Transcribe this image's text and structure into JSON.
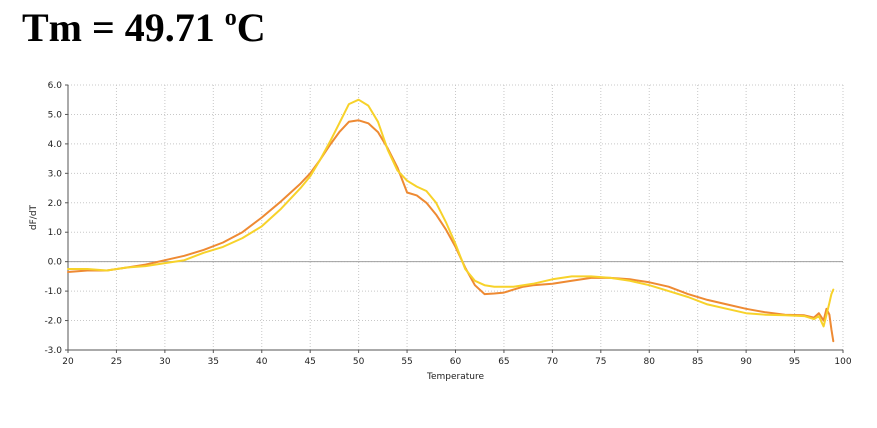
{
  "title": {
    "prefix": "Tm = 49.71 ",
    "degree": "o",
    "unit": "C"
  },
  "chart_data": {
    "type": "line",
    "xlabel": "Temperature",
    "ylabel": "dF/dT",
    "xlim": [
      20,
      100
    ],
    "ylim": [
      -3.0,
      6.0
    ],
    "xticks": [
      20,
      25,
      30,
      35,
      40,
      45,
      50,
      55,
      60,
      65,
      70,
      75,
      80,
      85,
      90,
      95,
      100
    ],
    "xtick_labels": [
      "20",
      "25",
      "30",
      "35",
      "40",
      "45",
      "50",
      "55",
      "60",
      "65",
      "70",
      "75",
      "80",
      "85",
      "90",
      "95",
      "100"
    ],
    "yticks": [
      -3,
      -2,
      -1,
      0,
      1,
      2,
      3,
      4,
      5,
      6
    ],
    "ytick_labels": [
      "-3.0",
      "-2.0",
      "-1.0",
      "0.0",
      "1.0",
      "2.0",
      "3.0",
      "4.0",
      "5.0",
      "6.0"
    ],
    "grid": true,
    "legend": "none",
    "series": [
      {
        "color": "#ee8a33",
        "x": [
          20,
          22,
          24,
          26,
          28,
          30,
          32,
          34,
          36,
          38,
          40,
          42,
          44,
          45,
          46,
          47,
          48,
          49,
          50,
          51,
          52,
          53,
          54,
          55,
          56,
          57,
          58,
          59,
          60,
          61,
          62,
          63,
          64,
          65,
          66,
          67,
          68,
          70,
          72,
          74,
          76,
          78,
          80,
          82,
          84,
          86,
          88,
          90,
          92,
          94,
          96,
          97,
          97.5,
          98,
          98.3,
          98.6,
          98.8,
          99
        ],
        "y": [
          -0.35,
          -0.3,
          -0.3,
          -0.2,
          -0.1,
          0.05,
          0.2,
          0.4,
          0.65,
          1.0,
          1.5,
          2.05,
          2.65,
          3.0,
          3.45,
          3.95,
          4.4,
          4.75,
          4.8,
          4.7,
          4.4,
          3.85,
          3.2,
          2.35,
          2.25,
          2.0,
          1.6,
          1.1,
          0.5,
          -0.2,
          -0.8,
          -1.1,
          -1.08,
          -1.05,
          -0.95,
          -0.85,
          -0.8,
          -0.75,
          -0.65,
          -0.55,
          -0.55,
          -0.6,
          -0.7,
          -0.85,
          -1.1,
          -1.3,
          -1.45,
          -1.6,
          -1.72,
          -1.8,
          -1.82,
          -1.9,
          -1.75,
          -2.0,
          -1.6,
          -1.8,
          -2.3,
          -2.7
        ]
      },
      {
        "color": "#f7d22a",
        "x": [
          20,
          22,
          24,
          26,
          28,
          30,
          32,
          34,
          36,
          38,
          40,
          42,
          44,
          45,
          46,
          47,
          48,
          49,
          50,
          51,
          52,
          53,
          54,
          55,
          56,
          57,
          58,
          59,
          60,
          61,
          62,
          63,
          64,
          66,
          68,
          70,
          72,
          74,
          76,
          78,
          80,
          82,
          84,
          86,
          88,
          90,
          92,
          94,
          96,
          97,
          97.5,
          98,
          98.3,
          98.6,
          98.8,
          99
        ],
        "y": [
          -0.25,
          -0.25,
          -0.3,
          -0.2,
          -0.15,
          -0.05,
          0.05,
          0.3,
          0.5,
          0.8,
          1.2,
          1.8,
          2.5,
          2.9,
          3.45,
          4.05,
          4.7,
          5.35,
          5.5,
          5.3,
          4.75,
          3.8,
          3.1,
          2.75,
          2.55,
          2.4,
          2.0,
          1.35,
          0.6,
          -0.25,
          -0.65,
          -0.8,
          -0.85,
          -0.85,
          -0.75,
          -0.6,
          -0.5,
          -0.5,
          -0.55,
          -0.65,
          -0.8,
          -1.0,
          -1.2,
          -1.45,
          -1.6,
          -1.75,
          -1.8,
          -1.82,
          -1.85,
          -1.95,
          -1.85,
          -2.2,
          -1.8,
          -1.4,
          -1.1,
          -0.95
        ]
      }
    ]
  }
}
